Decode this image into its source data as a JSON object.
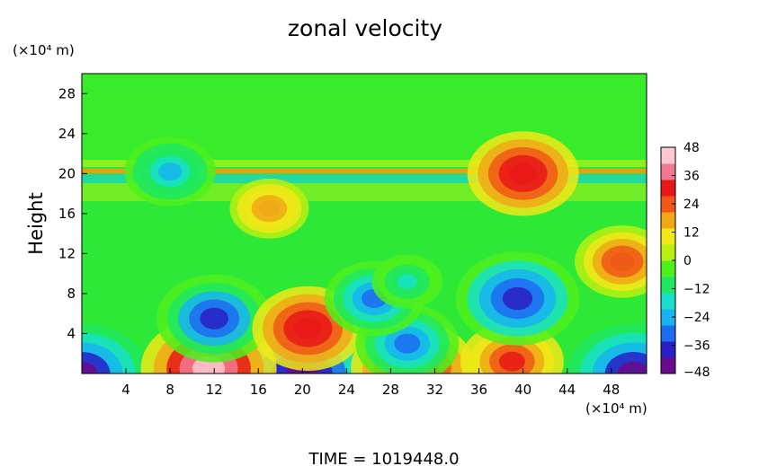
{
  "chart_data": {
    "type": "heatmap",
    "title": "zonal velocity",
    "ylabel": "Height",
    "yunit": "(×10⁴ m)",
    "xunit": "(×10⁴ m)",
    "xticks": [
      4,
      8,
      12,
      16,
      20,
      24,
      28,
      32,
      36,
      40,
      44,
      48
    ],
    "yticks": [
      4,
      8,
      12,
      16,
      20,
      24,
      28
    ],
    "xlim": [
      0,
      51.2
    ],
    "ylim": [
      0,
      30
    ],
    "colorbar": {
      "ticks": [
        48,
        36,
        24,
        12,
        0,
        -12,
        -24,
        -36,
        -48
      ],
      "range": [
        -48,
        48
      ],
      "colors": [
        "#6a0a8c",
        "#2a1fc4",
        "#1e6cf0",
        "#18b4f0",
        "#18e0c8",
        "#1ee860",
        "#4ef01c",
        "#b8f010",
        "#f0e818",
        "#f0a818",
        "#f05818",
        "#e81818",
        "#f07890",
        "#ffc8d0"
      ]
    },
    "field_features": [
      {
        "x": 20,
        "y": 0,
        "value": -48
      },
      {
        "x": 0,
        "y": 0,
        "value": -44
      },
      {
        "x": 50,
        "y": 0,
        "value": -44
      },
      {
        "x": 11.5,
        "y": 0.5,
        "value": 46
      },
      {
        "x": 30,
        "y": 0.6,
        "value": 40
      },
      {
        "x": 39,
        "y": 1.2,
        "value": 30
      },
      {
        "x": 12,
        "y": 5.5,
        "value": -36
      },
      {
        "x": 39.5,
        "y": 7.5,
        "value": -40
      },
      {
        "x": 20.5,
        "y": 4.5,
        "value": 34
      },
      {
        "x": 29.5,
        "y": 3,
        "value": -30
      },
      {
        "x": 26.5,
        "y": 7.5,
        "value": -28
      },
      {
        "x": 29.5,
        "y": 9.2,
        "value": -14
      },
      {
        "x": 49,
        "y": 11.2,
        "value": 26
      },
      {
        "x": 17,
        "y": 16.5,
        "value": 18
      },
      {
        "x": 40,
        "y": 20,
        "value": 34
      },
      {
        "x": 8,
        "y": 20.2,
        "value": -24
      }
    ],
    "time_label": "TIME  =  1019448.0"
  }
}
